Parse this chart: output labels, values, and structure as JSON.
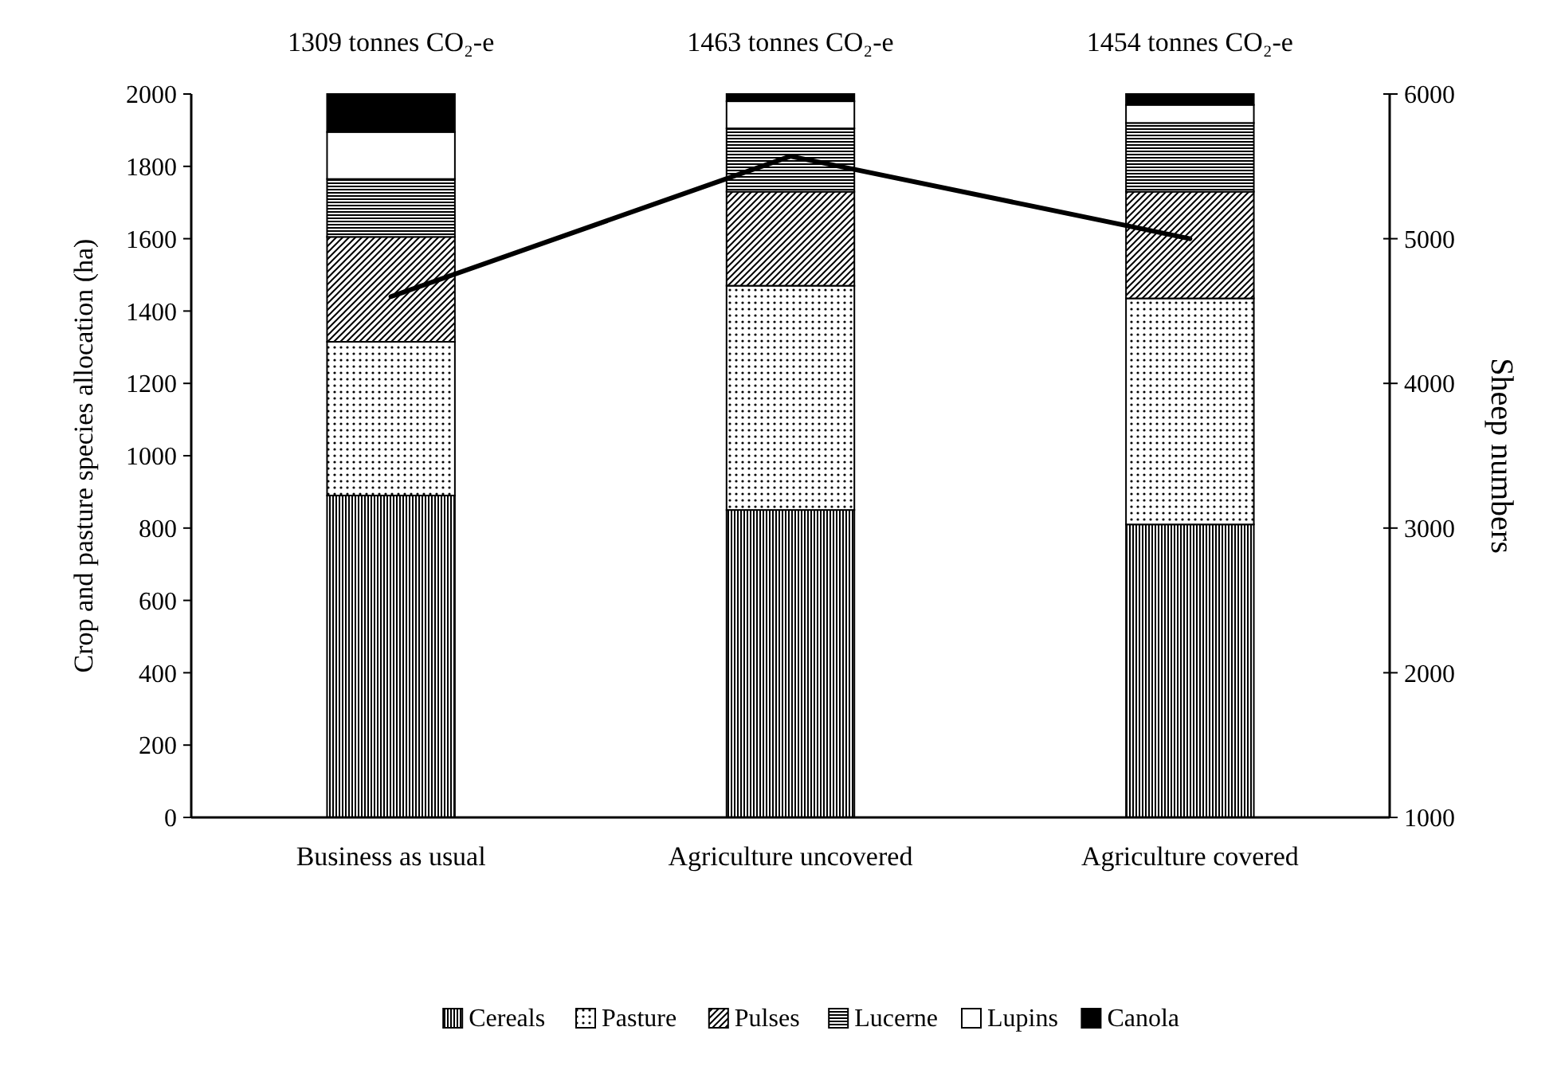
{
  "chart_data": {
    "type": "bar",
    "stacked": true,
    "categories": [
      "Business as usual",
      "Agriculture uncovered",
      "Agriculture covered"
    ],
    "ylabel": "Crop and pasture species allocation (ha)",
    "y2label": "Sheep numbers",
    "ylim": [
      0,
      2000
    ],
    "yticks": [
      0,
      200,
      400,
      600,
      800,
      1000,
      1200,
      1400,
      1600,
      1800,
      2000
    ],
    "y2lim": [
      1000,
      6000
    ],
    "y2ticks": [
      1000,
      2000,
      3000,
      4000,
      5000,
      6000
    ],
    "legend": "bottom",
    "grid": false,
    "series": [
      {
        "name": "Cereals",
        "color": "#000000",
        "values": [
          890,
          850,
          810
        ]
      },
      {
        "name": "Pasture",
        "color": "#000000",
        "values": [
          425,
          620,
          625
        ]
      },
      {
        "name": "Pulses",
        "color": "#000000",
        "values": [
          290,
          260,
          295
        ]
      },
      {
        "name": "Lucerne",
        "color": "#000000",
        "values": [
          160,
          175,
          190
        ]
      },
      {
        "name": "Lupins",
        "color": "#000000",
        "values": [
          130,
          75,
          50
        ]
      },
      {
        "name": "Canola",
        "color": "#000000",
        "values": [
          105,
          20,
          30
        ]
      },
      {
        "type": "line",
        "axis": "y2",
        "color": "#000000",
        "marker": "none",
        "values": [
          4600,
          5570,
          5000
        ]
      }
    ],
    "annotations": [
      {
        "text": "1309 tonnes CO₂-e",
        "x": "Business as usual",
        "y": 2000
      },
      {
        "text": "1463 tonnes CO₂-e",
        "x": "Agriculture uncovered",
        "y": 2000
      },
      {
        "text": "1454 tonnes CO₂-e",
        "x": "Agriculture covered",
        "y": 2000
      }
    ]
  }
}
